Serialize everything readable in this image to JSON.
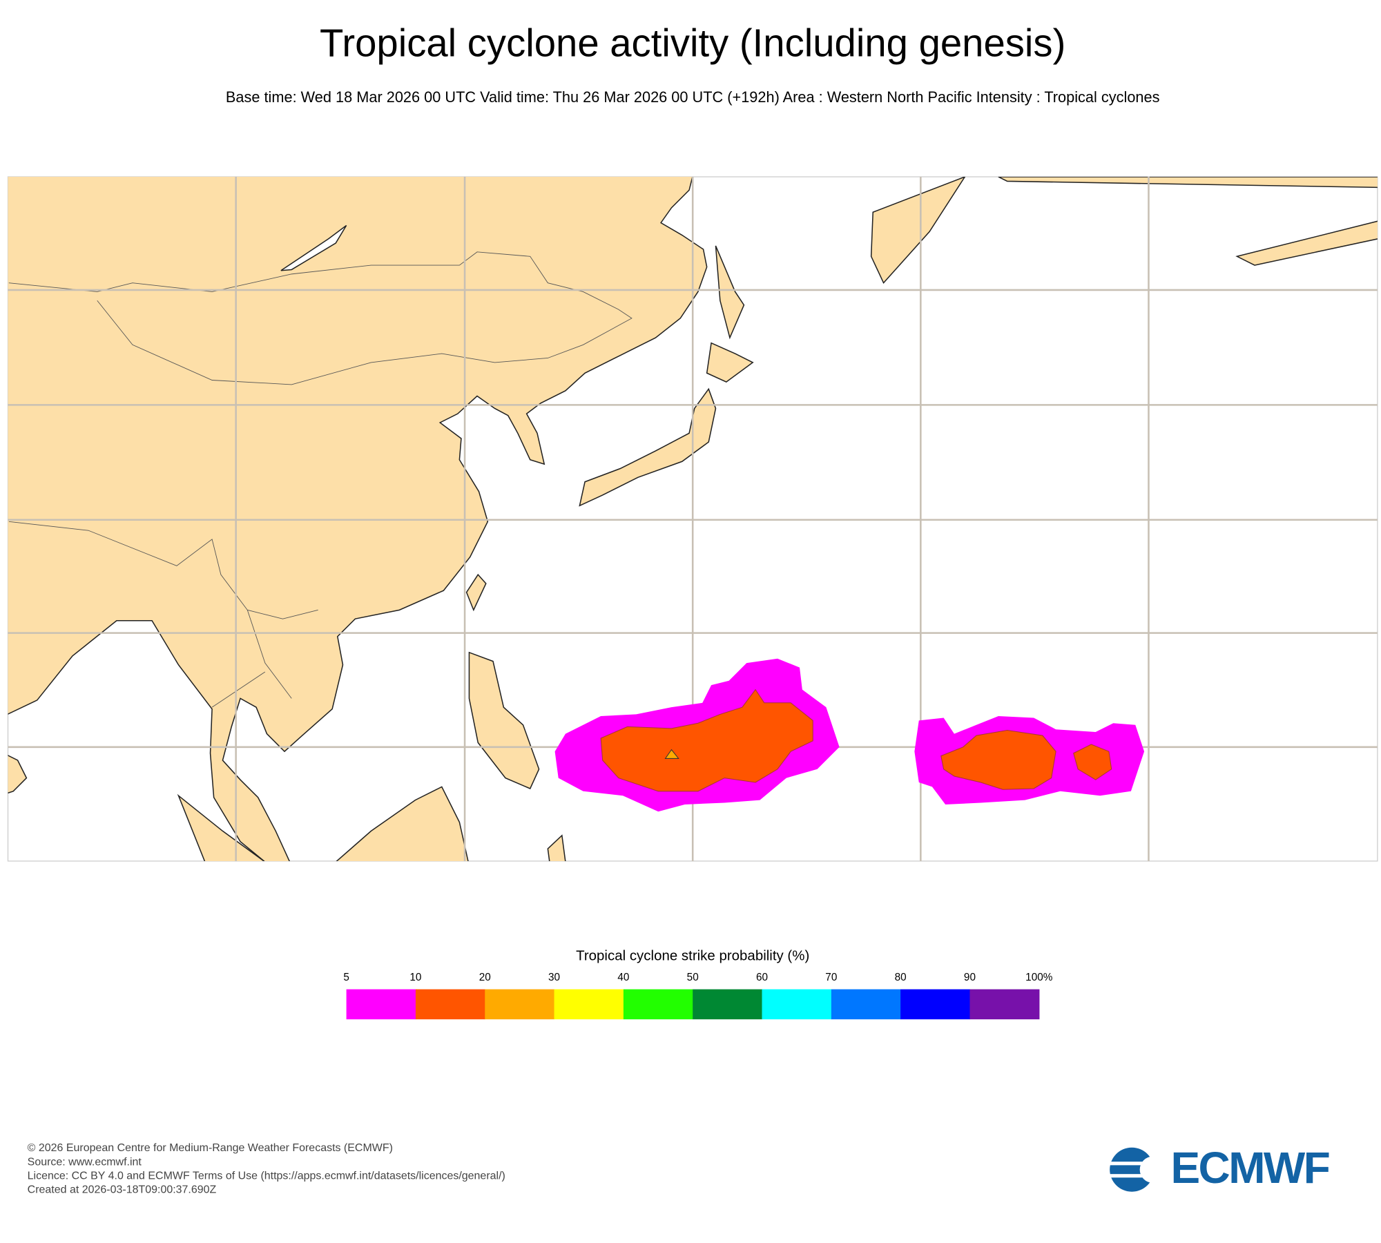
{
  "header": {
    "title": "Tropical cyclone activity (Including genesis)",
    "subtitle": "Base time: Wed 18 Mar 2026 00 UTC Valid time: Thu 26 Mar 2026 00 UTC (+192h) Area : Western North Pacific Intensity : Tropical cyclones"
  },
  "legend": {
    "title": "Tropical cyclone strike probability (%)",
    "ticks": [
      "5",
      "10",
      "20",
      "30",
      "40",
      "50",
      "60",
      "70",
      "80",
      "90",
      "100%"
    ],
    "colors": [
      "#ff00ff",
      "#ff5500",
      "#ffaa00",
      "#ffff00",
      "#22ff00",
      "#008833",
      "#00ffff",
      "#0077ff",
      "#0000ff",
      "#7711aa"
    ]
  },
  "footer": {
    "lines": [
      "© 2026 European Centre for Medium-Range Weather Forecasts (ECMWF)",
      "Source: www.ecmwf.int",
      "Licence: CC BY 4.0 and ECMWF Terms of Use (https://apps.ecmwf.int/datasets/licences/general/)",
      "Created at 2026-03-18T09:00:37.690Z"
    ]
  },
  "logo": {
    "text": "ECMWF"
  }
}
